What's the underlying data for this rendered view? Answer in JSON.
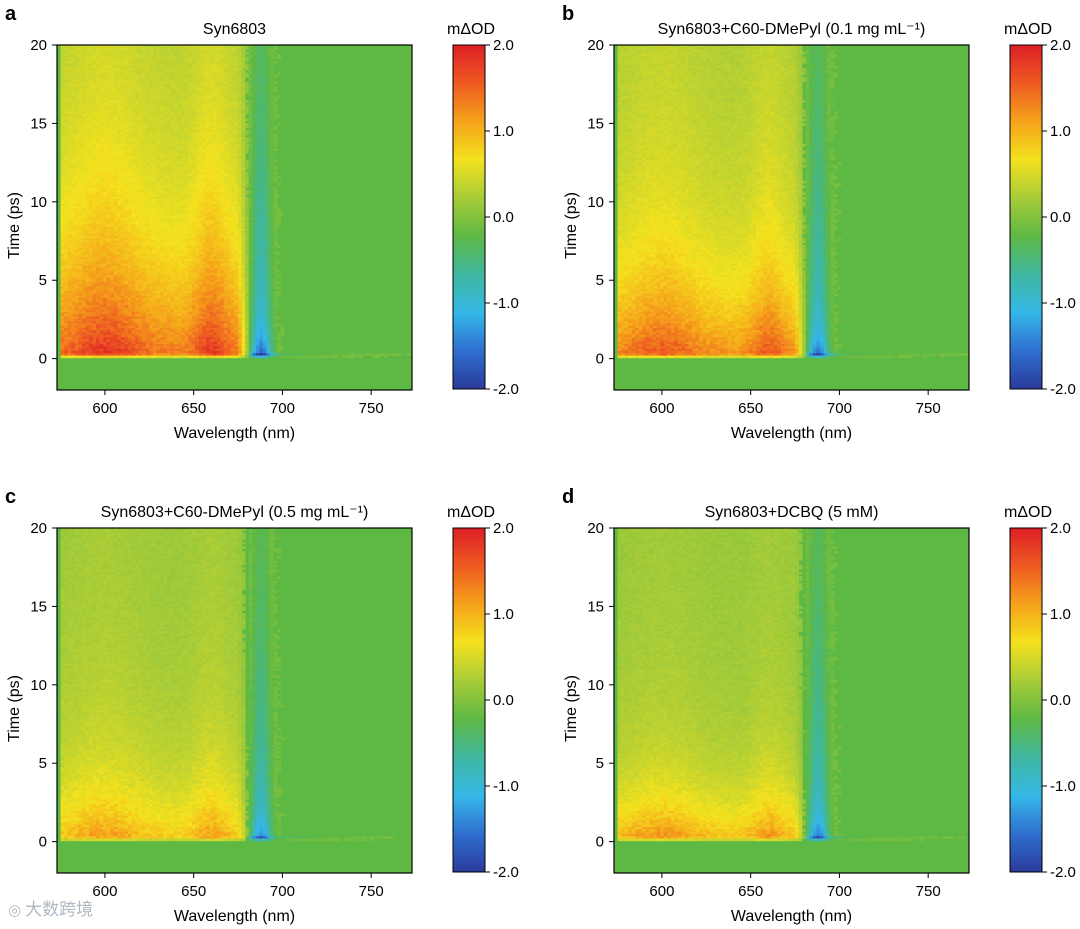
{
  "figure": {
    "watermark": "大数跨境",
    "colormap": [
      "#2b3b9b",
      "#2f6fd0",
      "#35b8e8",
      "#3fb7a0",
      "#5db844",
      "#a8cc38",
      "#f4e21e",
      "#f5a21b",
      "#ee5a22",
      "#dd1f26"
    ],
    "background_color": "#5db844"
  },
  "chart_data": [
    {
      "type": "heatmap",
      "panel_label": "a",
      "title": "Syn6803",
      "xlabel": "Wavelength (nm)",
      "ylabel": "Time (ps)",
      "x_range": [
        573,
        773
      ],
      "y_range": [
        -2,
        20
      ],
      "x_ticks": [
        600,
        650,
        700,
        750
      ],
      "y_ticks": [
        0,
        5,
        10,
        15,
        20
      ],
      "colorbar": {
        "title": "mΔOD",
        "range": [
          -2.0,
          2.0
        ],
        "ticks": [
          "2.0",
          "1.0",
          "0.0",
          "-1.0",
          "-2.0"
        ]
      },
      "features": {
        "positive_band_nm": [
          575,
          675
        ],
        "positive_peaks_nm": [
          600,
          660
        ],
        "positive_peak_mOD": 1.9,
        "bleach_center_nm": 688,
        "bleach_peak_mOD": -1.9,
        "decay_ps": 6.0,
        "long_lived_positive_mOD": 0.7
      }
    },
    {
      "type": "heatmap",
      "panel_label": "b",
      "title": "Syn6803+C60-DMePyl (0.1 mg mL⁻¹)",
      "xlabel": "Wavelength (nm)",
      "ylabel": "Time (ps)",
      "x_range": [
        573,
        773
      ],
      "y_range": [
        -2,
        20
      ],
      "x_ticks": [
        600,
        650,
        700,
        750
      ],
      "y_ticks": [
        0,
        5,
        10,
        15,
        20
      ],
      "colorbar": {
        "title": "mΔOD",
        "range": [
          -2.0,
          2.0
        ],
        "ticks": [
          "2.0",
          "1.0",
          "0.0",
          "-1.0",
          "-2.0"
        ]
      },
      "features": {
        "positive_band_nm": [
          575,
          675
        ],
        "positive_peaks_nm": [
          600,
          660
        ],
        "positive_peak_mOD": 1.7,
        "bleach_center_nm": 688,
        "bleach_peak_mOD": -1.8,
        "decay_ps": 4.5,
        "long_lived_positive_mOD": 0.6
      }
    },
    {
      "type": "heatmap",
      "panel_label": "c",
      "title": "Syn6803+C60-DMePyl (0.5 mg mL⁻¹)",
      "xlabel": "Wavelength (nm)",
      "ylabel": "Time (ps)",
      "x_range": [
        573,
        773
      ],
      "y_range": [
        -2,
        20
      ],
      "x_ticks": [
        600,
        650,
        700,
        750
      ],
      "y_ticks": [
        0,
        5,
        10,
        15,
        20
      ],
      "colorbar": {
        "title": "mΔOD",
        "range": [
          -2.0,
          2.0
        ],
        "ticks": [
          "2.0",
          "1.0",
          "0.0",
          "-1.0",
          "-2.0"
        ]
      },
      "features": {
        "positive_band_nm": [
          575,
          675
        ],
        "positive_peaks_nm": [
          600,
          660
        ],
        "positive_peak_mOD": 1.2,
        "bleach_center_nm": 688,
        "bleach_peak_mOD": -1.6,
        "decay_ps": 3.5,
        "long_lived_positive_mOD": 0.35
      }
    },
    {
      "type": "heatmap",
      "panel_label": "d",
      "title": "Syn6803+DCBQ (5 mM)",
      "xlabel": "Wavelength (nm)",
      "ylabel": "Time (ps)",
      "x_range": [
        573,
        773
      ],
      "y_range": [
        -2,
        20
      ],
      "x_ticks": [
        600,
        650,
        700,
        750
      ],
      "y_ticks": [
        0,
        5,
        10,
        15,
        20
      ],
      "colorbar": {
        "title": "mΔOD",
        "range": [
          -2.0,
          2.0
        ],
        "ticks": [
          "2.0",
          "1.0",
          "0.0",
          "-1.0",
          "-2.0"
        ]
      },
      "features": {
        "positive_band_nm": [
          575,
          675
        ],
        "positive_peaks_nm": [
          600,
          660
        ],
        "positive_peak_mOD": 1.3,
        "bleach_center_nm": 688,
        "bleach_peak_mOD": -1.7,
        "decay_ps": 3.0,
        "long_lived_positive_mOD": 0.3
      }
    }
  ]
}
